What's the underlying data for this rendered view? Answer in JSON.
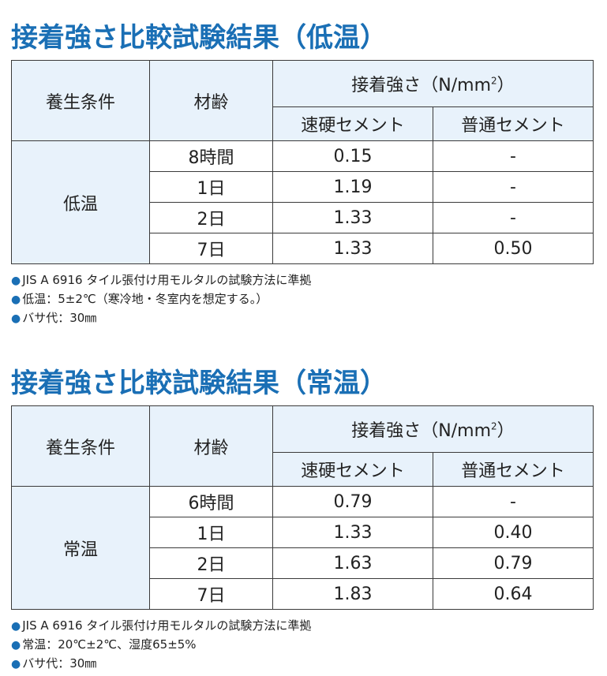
{
  "colors": {
    "title": "#1a6fb5",
    "header_bg": "#e8f2fb",
    "border": "#3a3a3a",
    "bullet": "#1a6fb5"
  },
  "sections": [
    {
      "title_main": "接着強さ比較試験結果",
      "title_paren": "（低温）",
      "header": {
        "condition": "養生条件",
        "age": "材齢",
        "strength": "接着強さ（N/mm",
        "strength_sup": "2",
        "strength_close": "）",
        "rapid": "速硬セメント",
        "ordinary": "普通セメント"
      },
      "condition_value": "低温",
      "rows": [
        {
          "age": "8時間",
          "rapid": "0.15",
          "ordinary": "-"
        },
        {
          "age": "1日",
          "rapid": "1.19",
          "ordinary": "-"
        },
        {
          "age": "2日",
          "rapid": "1.33",
          "ordinary": "-"
        },
        {
          "age": "7日",
          "rapid": "1.33",
          "ordinary": "0.50"
        }
      ],
      "notes": [
        "JIS A 6916 タイル張付け用モルタルの試験方法に準拠",
        "低温：5±2℃（寒冷地・冬室内を想定する。）",
        "バサ代：30㎜"
      ]
    },
    {
      "title_main": "接着強さ比較試験結果",
      "title_paren": "（常温）",
      "header": {
        "condition": "養生条件",
        "age": "材齢",
        "strength": "接着強さ（N/mm",
        "strength_sup": "2",
        "strength_close": "）",
        "rapid": "速硬セメント",
        "ordinary": "普通セメント"
      },
      "condition_value": "常温",
      "rows": [
        {
          "age": "6時間",
          "rapid": "0.79",
          "ordinary": "-"
        },
        {
          "age": "1日",
          "rapid": "1.33",
          "ordinary": "0.40"
        },
        {
          "age": "2日",
          "rapid": "1.63",
          "ordinary": "0.79"
        },
        {
          "age": "7日",
          "rapid": "1.83",
          "ordinary": "0.64"
        }
      ],
      "notes": [
        "JIS A 6916 タイル張付け用モルタルの試験方法に準拠",
        "常温：20℃±2℃、湿度65±5%",
        "バサ代：30㎜"
      ],
      "bullet": "●"
    }
  ],
  "bullet": "●"
}
